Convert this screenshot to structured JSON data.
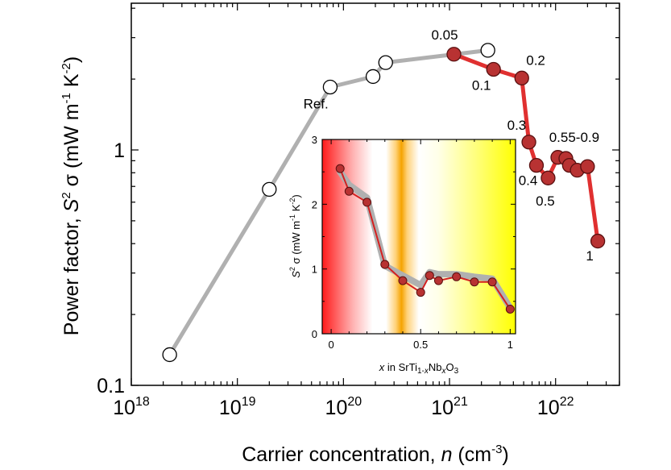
{
  "chart_data": [
    {
      "type": "line",
      "xscale": "log",
      "yscale": "log",
      "xlim": [
        1e+18,
        4e+22
      ],
      "ylim": [
        0.1,
        4.2
      ],
      "xlabel": {
        "main": "Carrier concentration, ",
        "var": "n",
        "unit": " (cm",
        "sup": "-3",
        "close": ")"
      },
      "ylabel": {
        "main": "Power factor, ",
        "S": "S",
        "sup2": "2",
        "rest": " σ (mW m",
        "sup1": "-1",
        "k": " K",
        "supk": "-2",
        "close": ")"
      },
      "xticks": [
        {
          "value": 1e+18,
          "base": "10",
          "exp": "18"
        },
        {
          "value": 1e+19,
          "base": "10",
          "exp": "19"
        },
        {
          "value": 1e+20,
          "base": "10",
          "exp": "20"
        },
        {
          "value": 1e+21,
          "base": "10",
          "exp": "21"
        },
        {
          "value": 1e+22,
          "base": "10",
          "exp": "22"
        }
      ],
      "yticks": [
        {
          "value": 0.1,
          "label": "0.1"
        },
        {
          "value": 1,
          "label": "1"
        }
      ],
      "series": [
        {
          "line_color": "#b0b0b0",
          "marker_fill": "#ffffff",
          "marker_stroke": "#000000",
          "x": [
            2.3e+18,
            2e+19,
            7.5e+19,
            1.9e+20,
            2.5e+20,
            2.3e+21
          ],
          "y": [
            0.135,
            0.68,
            1.85,
            2.05,
            2.35,
            2.65
          ]
        },
        {
          "line_color": "#e03030",
          "marker_fill": "#b83232",
          "marker_stroke": "#5a1010",
          "x": [
            1.1e+21,
            2.6e+21,
            4.8e+21,
            5.6e+21,
            6.6e+21,
            8.5e+21,
            1.05e+22,
            1.25e+22,
            1.35e+22,
            1.6e+22,
            2e+22,
            2.5e+22
          ],
          "y": [
            2.55,
            2.2,
            2.02,
            1.08,
            0.86,
            0.76,
            0.93,
            0.92,
            0.86,
            0.82,
            0.85,
            0.41
          ]
        }
      ],
      "annotations": [
        {
          "text": "Ref.",
          "x": 5.5e+19,
          "y": 1.5
        },
        {
          "text": "0.05",
          "x": 9e+20,
          "y": 2.95
        },
        {
          "text": "0.1",
          "x": 2e+21,
          "y": 1.8
        },
        {
          "text": "0.2",
          "x": 6.5e+21,
          "y": 2.3
        },
        {
          "text": "0.3",
          "x": 4.3e+21,
          "y": 1.22
        },
        {
          "text": "0.4",
          "x": 5.5e+21,
          "y": 0.71
        },
        {
          "text": "0.5",
          "x": 8e+21,
          "y": 0.58
        },
        {
          "text": "0.55-0.9",
          "x": 1.5e+22,
          "y": 1.08
        },
        {
          "text": "1",
          "x": 2.1e+22,
          "y": 0.34
        }
      ]
    },
    {
      "type": "line",
      "xlim": [
        -0.05,
        1.03
      ],
      "ylim": [
        0,
        3
      ],
      "xlabel": {
        "x1": "x",
        "mid": " in SrTi",
        "sub1": "1-",
        "x2": "x",
        "nb": "Nb",
        "x3": "x",
        "o": "O",
        "sub3": "3"
      },
      "ylabel": {
        "S": "S",
        "sup2": "2",
        "rest": " σ (mW m",
        "sup1": "-1",
        "k": " K",
        "supk": "-2",
        "close": ")"
      },
      "xticks": [
        {
          "value": 0,
          "label": "0"
        },
        {
          "value": 0.5,
          "label": "0.5"
        },
        {
          "value": 1,
          "label": "1"
        }
      ],
      "yticks": [
        {
          "value": 0,
          "label": "0"
        },
        {
          "value": 1,
          "label": "1"
        },
        {
          "value": 2,
          "label": "2"
        },
        {
          "value": 3,
          "label": "3"
        }
      ],
      "band_line": {
        "color": "#b0b0b0",
        "x": [
          0.05,
          0.1,
          0.2,
          0.3,
          0.4,
          0.5,
          0.55,
          0.6,
          0.7,
          0.8,
          0.9,
          1.0
        ],
        "y": [
          2.5,
          2.3,
          2.1,
          1.05,
          0.9,
          0.75,
          0.95,
          0.92,
          0.92,
          0.88,
          0.85,
          0.4
        ]
      },
      "series": [
        {
          "line_color": "#d42020",
          "marker_fill": "#b83232",
          "marker_stroke": "#5a1010",
          "x": [
            0.05,
            0.1,
            0.2,
            0.3,
            0.4,
            0.5,
            0.55,
            0.6,
            0.7,
            0.8,
            0.9,
            1.0
          ],
          "y": [
            2.55,
            2.2,
            2.03,
            1.07,
            0.82,
            0.64,
            0.9,
            0.82,
            0.88,
            0.8,
            0.8,
            0.38
          ]
        }
      ],
      "background_colors": [
        "#ff0000",
        "#ffffff",
        "#ffa500",
        "#ffffff",
        "#ffff00"
      ]
    }
  ]
}
